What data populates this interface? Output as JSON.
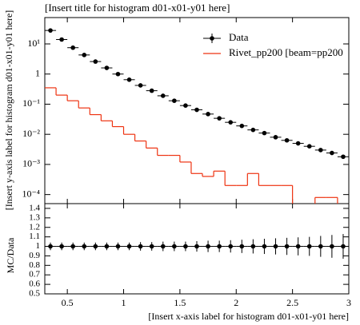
{
  "chart_data": [
    {
      "type": "histogram",
      "title": "[Insert title for histogram d01-x01-y01 here]",
      "y_label": "[Insert y-axis label for histogram d01-x01-y01 here]",
      "bins": [
        0.3,
        0.4,
        0.5,
        0.6,
        0.7,
        0.8,
        0.9,
        1.0,
        1.1,
        1.2,
        1.3,
        1.4,
        1.5,
        1.6,
        1.7,
        1.8,
        1.9,
        2.0,
        2.1,
        2.2,
        2.3,
        2.4,
        2.5,
        2.6,
        2.7,
        2.8,
        2.9,
        3.0
      ],
      "series": [
        {
          "name": "Data",
          "color": "#000000",
          "style": "points",
          "values": [
            28,
            14,
            7.5,
            4.3,
            2.6,
            1.6,
            1.0,
            0.65,
            0.42,
            0.28,
            0.19,
            0.13,
            0.09,
            0.065,
            0.047,
            0.034,
            0.025,
            0.019,
            0.014,
            0.011,
            0.008,
            0.0063,
            0.005,
            0.004,
            0.003,
            0.0024,
            0.0018
          ]
        },
        {
          "name": "Rivet_pp200 [beam=pp200",
          "color": "#ee3311",
          "style": "step",
          "values": [
            0.35,
            0.2,
            0.13,
            0.075,
            0.045,
            0.028,
            0.018,
            0.01,
            0.006,
            0.0035,
            0.002,
            0.002,
            0.0012,
            0.0005,
            0.0004,
            0.0006,
            0.0002,
            0.0002,
            0.0005,
            0.0002,
            0.0002,
            0.0002,
            null,
            null,
            8e-05,
            8e-05,
            null
          ]
        }
      ],
      "xlim": [
        0.3,
        3.0
      ],
      "xticks": [
        0.5,
        1,
        1.5,
        2,
        2.5,
        3
      ],
      "log_y": true,
      "ylim": [
        5e-05,
        75
      ],
      "yticks": [
        {
          "value": 10,
          "label": "10¹"
        },
        1,
        {
          "value": 0.1,
          "label": "10⁻¹"
        },
        {
          "value": 0.01,
          "label": "10⁻²"
        },
        {
          "value": 0.001,
          "label": "10⁻³"
        },
        {
          "value": 0.0001,
          "label": "10⁻⁴"
        }
      ],
      "legend": "top-right"
    },
    {
      "type": "ratio",
      "x_label": "[Insert x-axis label for histogram d01-x01-y01 here]",
      "y_label": "MC/Data",
      "values": [
        1,
        1,
        1,
        1,
        1,
        1,
        1,
        1,
        1,
        1,
        1,
        1,
        1,
        1,
        1,
        1,
        1,
        1,
        1,
        1,
        1,
        1,
        1,
        1,
        1,
        1,
        1
      ],
      "errors": [
        0.04,
        0.04,
        0.04,
        0.04,
        0.04,
        0.04,
        0.04,
        0.04,
        0.045,
        0.045,
        0.05,
        0.05,
        0.05,
        0.055,
        0.06,
        0.06,
        0.065,
        0.07,
        0.075,
        0.08,
        0.085,
        0.09,
        0.095,
        0.1,
        0.11,
        0.12,
        0.13
      ],
      "color": "#000000",
      "xlim": [
        0.3,
        3.0
      ],
      "xticks": [
        0.5,
        1,
        1.5,
        2,
        2.5,
        3
      ],
      "ylim": [
        0.5,
        1.45
      ],
      "yticks": [
        0.5,
        0.6,
        0.7,
        0.8,
        0.9,
        1,
        1.1,
        1.2,
        1.3,
        1.4
      ]
    }
  ]
}
